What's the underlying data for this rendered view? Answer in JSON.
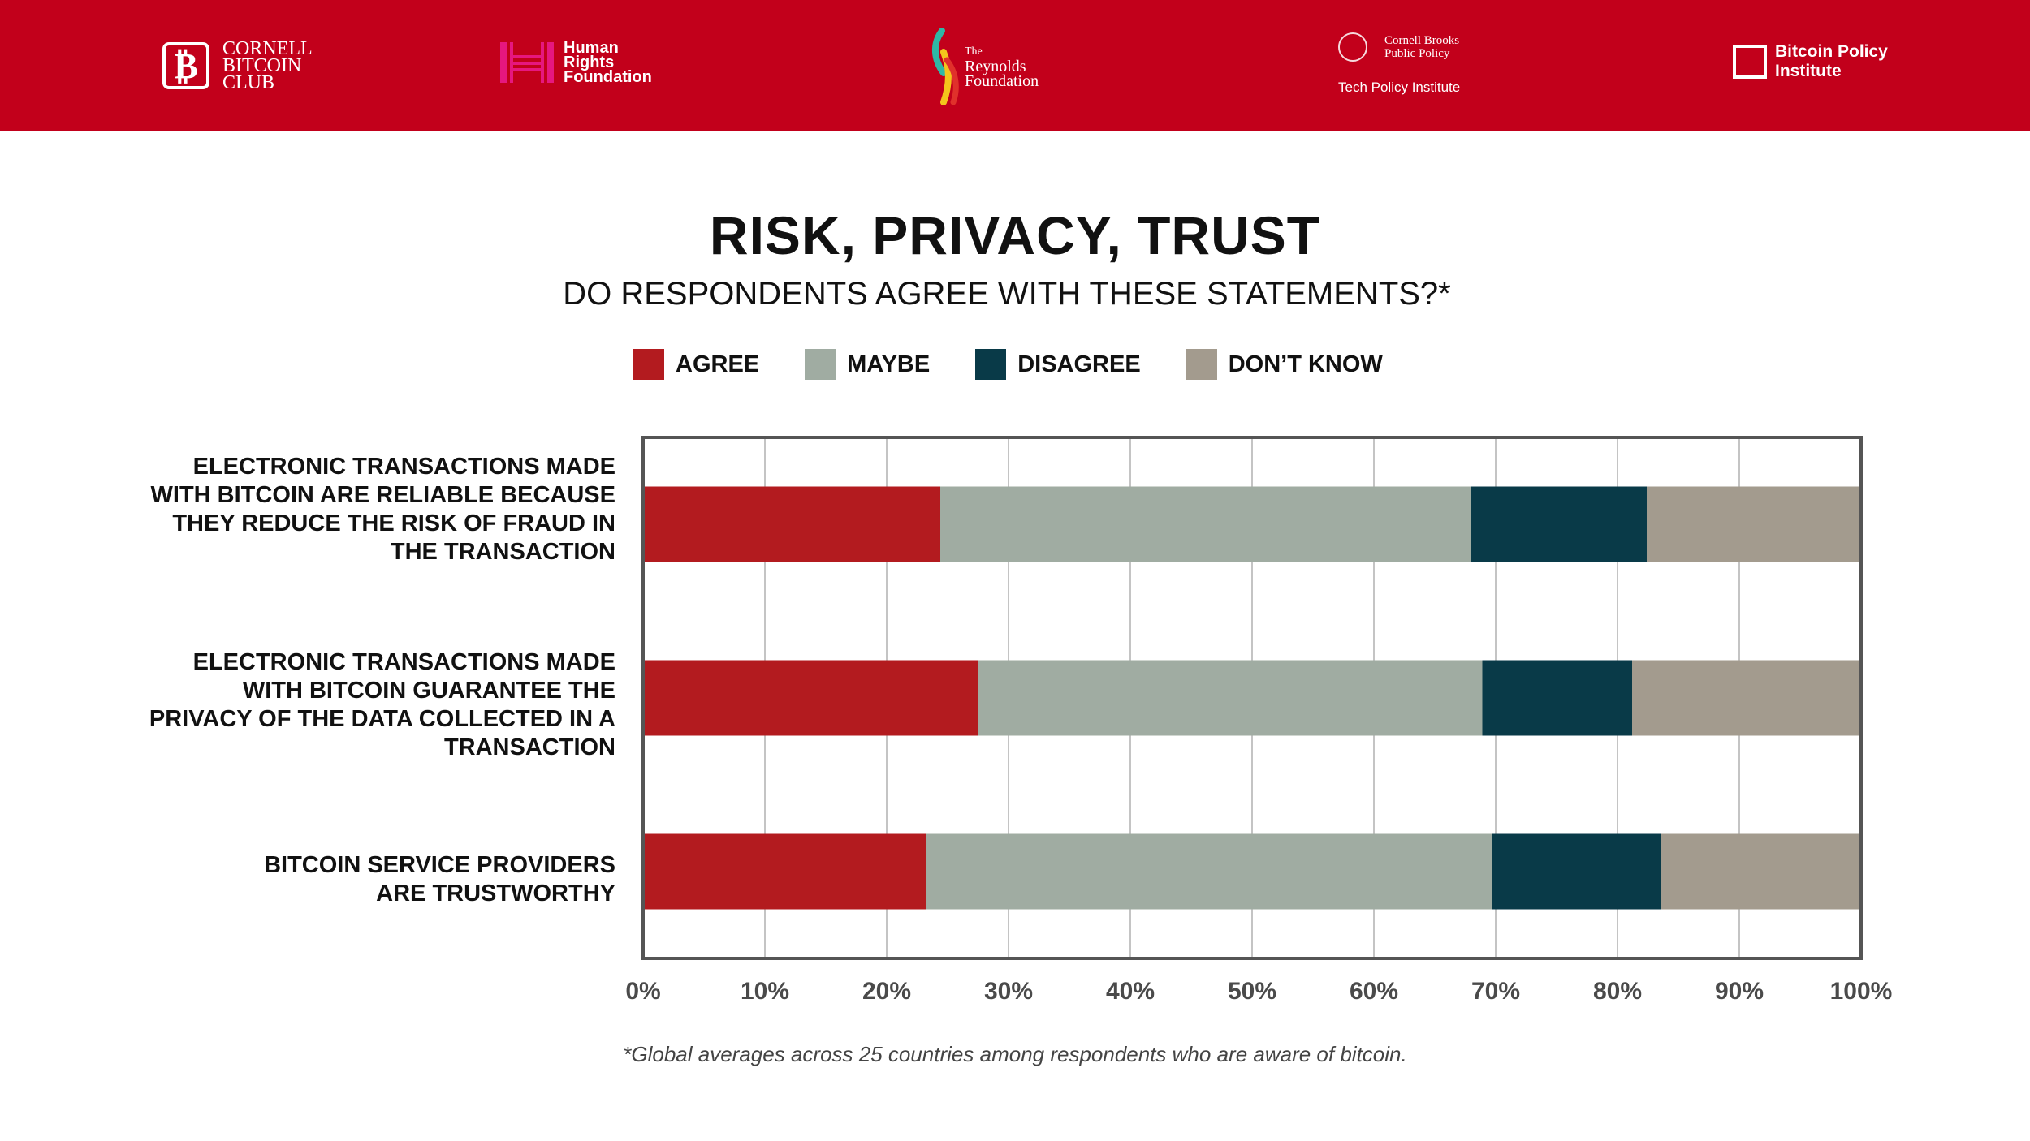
{
  "banner": {
    "color": "#c2001b",
    "logos": {
      "cornell_bitcoin_club": {
        "mark": "₿",
        "lines": [
          "CORNELL",
          "BITCOIN",
          "CLUB"
        ]
      },
      "human_rights_foundation": {
        "lines": [
          "Human",
          "Rights",
          "Foundation"
        ]
      },
      "reynolds_foundation": {
        "lines": [
          "The",
          "Reynolds",
          "Foundation"
        ]
      },
      "cornell_brooks": {
        "lines": [
          "Cornell Brooks",
          "Public Policy"
        ],
        "sub": "Tech Policy Institute"
      },
      "bitcoin_policy_institute": {
        "lines": [
          "Bitcoin Policy",
          "Institute"
        ]
      }
    }
  },
  "title": "RISK, PRIVACY, TRUST",
  "subtitle": "DO RESPONDENTS AGREE WITH THESE STATEMENTS?*",
  "footnote": "*Global averages across 25 countries among respondents who are aware of bitcoin.",
  "chart_data": {
    "type": "bar",
    "orientation": "horizontal",
    "stacked": true,
    "categories": [
      "ELECTRONIC TRANSACTIONS MADE WITH BITCOIN ARE RELIABLE BECAUSE THEY REDUCE THE RISK OF FRAUD IN THE TRANSACTION",
      "ELECTRONIC TRANSACTIONS MADE WITH BITCOIN GUARANTEE THE PRIVACY OF THE DATA COLLECTED IN A TRANSACTION",
      "BITCOIN SERVICE PROVIDERS ARE TRUSTWORTHY"
    ],
    "category_lines": [
      [
        "ELECTRONIC TRANSACTIONS MADE",
        "WITH BITCOIN ARE RELIABLE BECAUSE",
        "THEY REDUCE THE RISK OF FRAUD IN",
        "THE TRANSACTION"
      ],
      [
        "ELECTRONIC TRANSACTIONS MADE",
        "WITH BITCOIN GUARANTEE THE",
        "PRIVACY OF THE DATA COLLECTED IN A",
        "TRANSACTION"
      ],
      [
        "BITCOIN SERVICE PROVIDERS",
        "ARE TRUSTWORTHY"
      ]
    ],
    "series": [
      {
        "name": "AGREE",
        "color": "#b31b1f",
        "values": [
          24.4,
          27.5,
          23.2
        ]
      },
      {
        "name": "MAYBE",
        "color": "#a0aca2",
        "values": [
          43.6,
          41.4,
          46.5
        ]
      },
      {
        "name": "DISAGREE",
        "color": "#093a48",
        "values": [
          14.4,
          12.3,
          13.9
        ]
      },
      {
        "name": "DON’T KNOW",
        "color": "#a39b8e",
        "values": [
          17.6,
          18.8,
          16.4
        ]
      }
    ],
    "xlim": [
      0,
      100
    ],
    "xticks": [
      "0%",
      "10%",
      "20%",
      "30%",
      "40%",
      "50%",
      "60%",
      "70%",
      "80%",
      "90%",
      "100%"
    ],
    "grid": true,
    "legend_position": "top"
  }
}
